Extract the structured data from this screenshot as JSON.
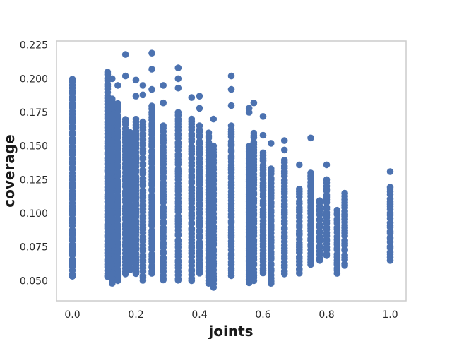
{
  "chart_data": {
    "type": "scatter",
    "title": "",
    "xlabel": "joints",
    "ylabel": "coverage",
    "xlim": [
      -0.05,
      1.05
    ],
    "ylim": [
      0.035,
      0.228
    ],
    "xticks": [
      0.0,
      0.2,
      0.4,
      0.6,
      0.8,
      1.0
    ],
    "xtick_labels": [
      "0.0",
      "0.2",
      "0.4",
      "0.6",
      "0.8",
      "1.0"
    ],
    "yticks": [
      0.05,
      0.075,
      0.1,
      0.125,
      0.15,
      0.175,
      0.2,
      0.225
    ],
    "ytick_labels": [
      "0.050",
      "0.075",
      "0.100",
      "0.125",
      "0.150",
      "0.175",
      "0.200",
      "0.225"
    ],
    "grid": false,
    "color": "#4c72b0",
    "columns": [
      {
        "x": 0.0,
        "ymin": 0.053,
        "ymax": 0.2,
        "extra": []
      },
      {
        "x": 0.111,
        "ymin": 0.053,
        "ymax": 0.205,
        "extra": [
          0.053
        ]
      },
      {
        "x": 0.125,
        "ymin": 0.048,
        "ymax": 0.185,
        "extra": [
          0.2
        ]
      },
      {
        "x": 0.143,
        "ymin": 0.05,
        "ymax": 0.182,
        "extra": [
          0.195
        ]
      },
      {
        "x": 0.167,
        "ymin": 0.055,
        "ymax": 0.17,
        "extra": [
          0.218,
          0.202
        ]
      },
      {
        "x": 0.182,
        "ymin": 0.058,
        "ymax": 0.16,
        "extra": []
      },
      {
        "x": 0.2,
        "ymin": 0.055,
        "ymax": 0.17,
        "extra": [
          0.199,
          0.187
        ]
      },
      {
        "x": 0.222,
        "ymin": 0.05,
        "ymax": 0.168,
        "extra": [
          0.195,
          0.188
        ]
      },
      {
        "x": 0.25,
        "ymin": 0.055,
        "ymax": 0.18,
        "extra": [
          0.219,
          0.207,
          0.192
        ]
      },
      {
        "x": 0.286,
        "ymin": 0.05,
        "ymax": 0.165,
        "extra": [
          0.195,
          0.182
        ]
      },
      {
        "x": 0.333,
        "ymin": 0.05,
        "ymax": 0.175,
        "extra": [
          0.208,
          0.2,
          0.193
        ]
      },
      {
        "x": 0.375,
        "ymin": 0.05,
        "ymax": 0.17,
        "extra": [
          0.186
        ]
      },
      {
        "x": 0.4,
        "ymin": 0.055,
        "ymax": 0.165,
        "extra": [
          0.187,
          0.178
        ]
      },
      {
        "x": 0.429,
        "ymin": 0.048,
        "ymax": 0.16,
        "extra": []
      },
      {
        "x": 0.444,
        "ymin": 0.045,
        "ymax": 0.15,
        "extra": [
          0.17
        ]
      },
      {
        "x": 0.5,
        "ymin": 0.053,
        "ymax": 0.165,
        "extra": [
          0.202,
          0.192,
          0.18
        ]
      },
      {
        "x": 0.556,
        "ymin": 0.048,
        "ymax": 0.15,
        "extra": [
          0.178,
          0.175
        ]
      },
      {
        "x": 0.571,
        "ymin": 0.05,
        "ymax": 0.16,
        "extra": [
          0.182
        ]
      },
      {
        "x": 0.6,
        "ymin": 0.055,
        "ymax": 0.145,
        "extra": [
          0.172,
          0.158
        ]
      },
      {
        "x": 0.625,
        "ymin": 0.048,
        "ymax": 0.133,
        "extra": [
          0.152
        ]
      },
      {
        "x": 0.667,
        "ymin": 0.055,
        "ymax": 0.14,
        "extra": [
          0.154,
          0.147
        ]
      },
      {
        "x": 0.714,
        "ymin": 0.055,
        "ymax": 0.118,
        "extra": [
          0.136
        ]
      },
      {
        "x": 0.75,
        "ymin": 0.062,
        "ymax": 0.13,
        "extra": [
          0.156
        ]
      },
      {
        "x": 0.778,
        "ymin": 0.065,
        "ymax": 0.11,
        "extra": []
      },
      {
        "x": 0.8,
        "ymin": 0.068,
        "ymax": 0.125,
        "extra": [
          0.136
        ]
      },
      {
        "x": 0.833,
        "ymin": 0.055,
        "ymax": 0.103,
        "extra": []
      },
      {
        "x": 0.857,
        "ymin": 0.061,
        "ymax": 0.115,
        "extra": []
      },
      {
        "x": 1.0,
        "ymin": 0.065,
        "ymax": 0.12,
        "extra": [
          0.131
        ]
      }
    ]
  }
}
